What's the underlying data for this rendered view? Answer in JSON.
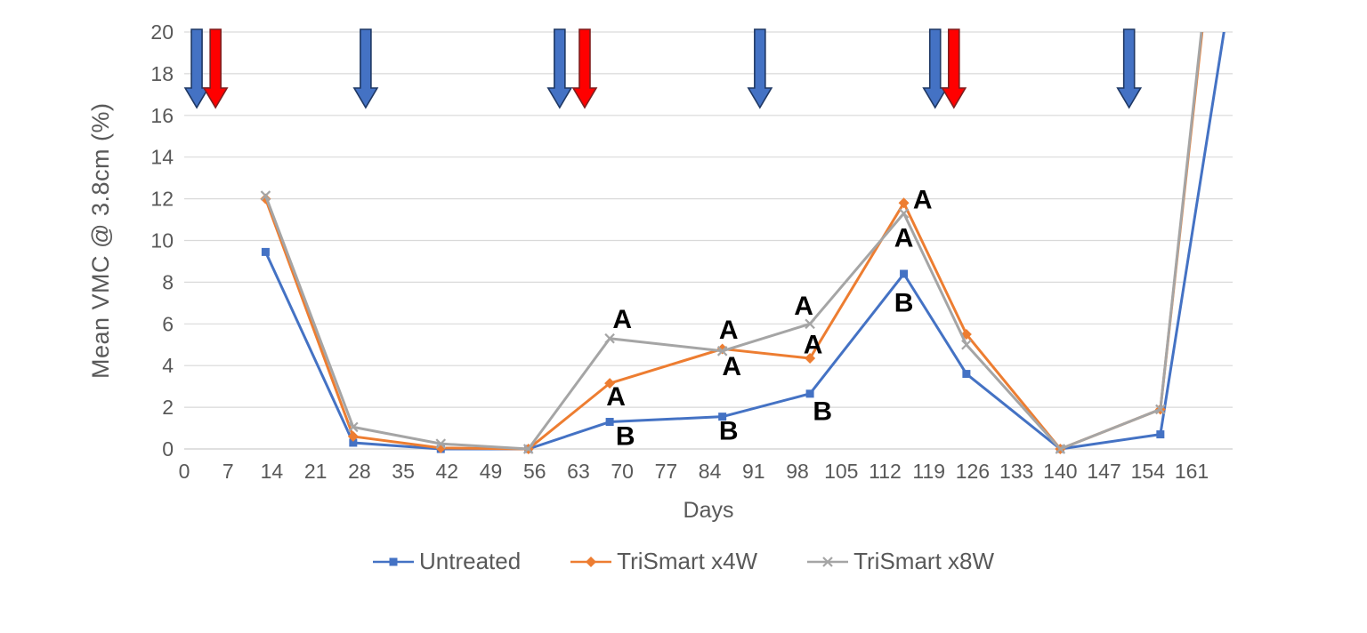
{
  "figure": {
    "background": "#FFFFFF"
  },
  "chart_data": {
    "type": "line",
    "title": "",
    "xlabel": "Days",
    "ylabel": "Mean VMC @ 3.8cm (%)",
    "x_ticks": [
      0,
      7,
      14,
      21,
      28,
      35,
      42,
      49,
      56,
      63,
      70,
      77,
      84,
      91,
      98,
      105,
      112,
      119,
      126,
      133,
      140,
      147,
      154,
      161
    ],
    "y_ticks": [
      0,
      2,
      4,
      6,
      8,
      10,
      12,
      14,
      16,
      18,
      20
    ],
    "xlim": [
      0,
      167.5
    ],
    "ylim": [
      0,
      20
    ],
    "grid": "horizontal gridlines every 2 units",
    "legend_position": "bottom",
    "x_days": [
      13,
      27,
      41,
      55,
      68,
      86,
      100,
      115,
      125,
      140,
      156,
      168
    ],
    "series": [
      {
        "name": "Untreated",
        "color": "#4472C4",
        "marker": "square",
        "values": [
          9.45,
          0.3,
          0.0,
          0.0,
          1.3,
          1.55,
          2.65,
          8.4,
          3.6,
          0.0,
          0.7,
          23.5
        ],
        "last_point_off_scale": true
      },
      {
        "name": "TriSmart x4W",
        "color": "#ED7D31",
        "marker": "diamond",
        "values": [
          12.0,
          0.6,
          0.05,
          0.0,
          3.15,
          4.8,
          4.35,
          11.8,
          5.5,
          0.0,
          1.9,
          34.5
        ],
        "last_point_off_scale": true
      },
      {
        "name": "TriSmart x8W",
        "color": "#A5A5A5",
        "marker": "x",
        "values": [
          12.15,
          1.05,
          0.25,
          0.0,
          5.3,
          4.7,
          6.0,
          11.3,
          5.0,
          0.0,
          1.9,
          35.0
        ],
        "last_point_off_scale": true
      }
    ],
    "annotations": [
      {
        "text": "A",
        "day": 70,
        "value": 6.2
      },
      {
        "text": "A",
        "day": 69,
        "value": 2.5
      },
      {
        "text": "B",
        "day": 70.5,
        "value": 0.6
      },
      {
        "text": "A",
        "day": 87,
        "value": 5.7
      },
      {
        "text": "A",
        "day": 87.5,
        "value": 3.95
      },
      {
        "text": "B",
        "day": 87,
        "value": 0.85
      },
      {
        "text": "A",
        "day": 99,
        "value": 6.85
      },
      {
        "text": "A",
        "day": 100.5,
        "value": 5.0
      },
      {
        "text": "B",
        "day": 102,
        "value": 1.8
      },
      {
        "text": "A",
        "day": 118,
        "value": 11.95
      },
      {
        "text": "A",
        "day": 115,
        "value": 10.1
      },
      {
        "text": "B",
        "day": 115,
        "value": 7.0
      }
    ],
    "events": {
      "blue_arrows": {
        "name": "blue-application-arrow",
        "fill": "#4472C4",
        "border": "#1F3864",
        "days": [
          2,
          29,
          60,
          92,
          120,
          151
        ]
      },
      "red_arrows": {
        "name": "red-application-arrow",
        "fill": "#FF0000",
        "border": "#7F1F1F",
        "days": [
          5,
          64,
          123
        ]
      }
    },
    "colors": {
      "gridline": "#D9D9D9",
      "axis_line": "#D9D9D9",
      "axis_text": "#595959",
      "annotation": "#000000"
    }
  }
}
